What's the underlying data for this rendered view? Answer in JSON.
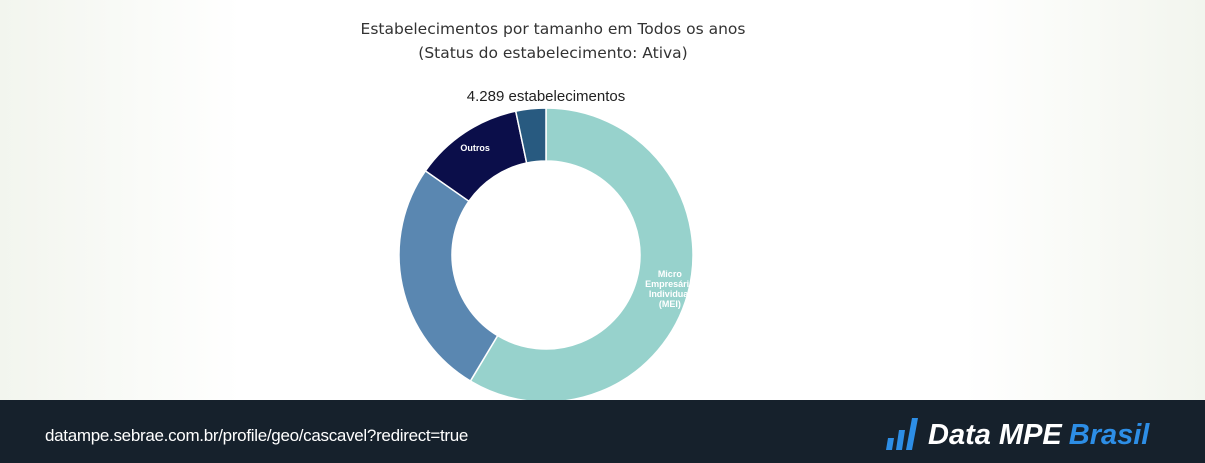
{
  "chart_data": {
    "type": "donut",
    "title": "Estabelecimentos por tamanho em Todos os anos",
    "subtitle": "(Status do estabelecimento: Ativa)",
    "annotation": "4.289 estabelecimentos",
    "categories": [
      "Micro Empresário Individual (MEI)",
      null,
      "Outros",
      null
    ],
    "values": [
      58.6,
      26.1,
      12,
      3.3
    ],
    "colors": [
      "#97d2cc",
      "#5a87b1",
      "#0b0e4a",
      "#285a80"
    ]
  },
  "footer": {
    "url": "datampe.sebrae.com.br/profile/geo/cascavel?redirect=true",
    "logo": {
      "main": "Data MPE",
      "accent": "Brasil"
    }
  }
}
